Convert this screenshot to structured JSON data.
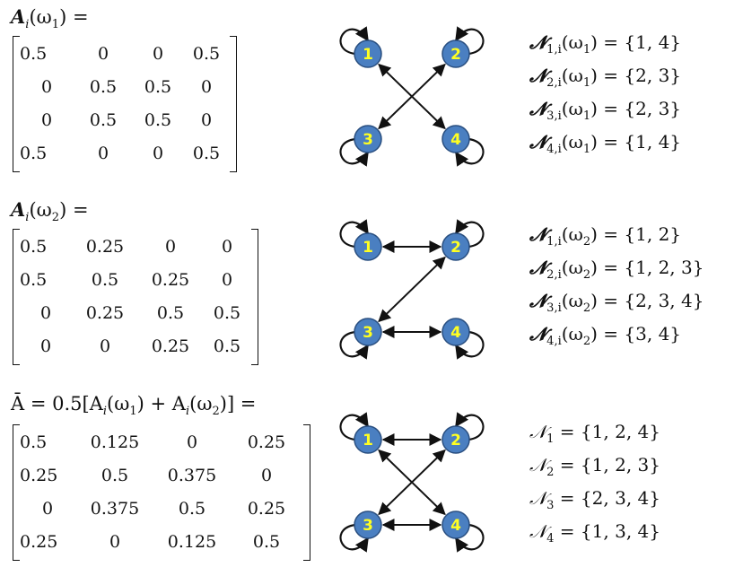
{
  "sections": [
    {
      "title_main": "A",
      "title_sub": "i",
      "title_rest": "(ω",
      "title_rest_sub": "1",
      "title_end": ") =",
      "matrix": [
        [
          "0.5",
          "0",
          "0",
          "0.5"
        ],
        [
          "0",
          "0.5",
          "0.5",
          "0"
        ],
        [
          "0",
          "0.5",
          "0.5",
          "0"
        ],
        [
          "0.5",
          "0",
          "0",
          "0.5"
        ]
      ],
      "neighborhoods": [
        {
          "sub": "1,i",
          "arg": "(ω",
          "argsub": "1",
          "set": ") = {1, 4}"
        },
        {
          "sub": "2,i",
          "arg": "(ω",
          "argsub": "1",
          "set": ") = {2, 3}"
        },
        {
          "sub": "3,i",
          "arg": "(ω",
          "argsub": "1",
          "set": ") = {2, 3}"
        },
        {
          "sub": "4,i",
          "arg": "(ω",
          "argsub": "1",
          "set": ") = {1, 4}"
        }
      ]
    },
    {
      "title_main": "A",
      "title_sub": "i",
      "title_rest": "(ω",
      "title_rest_sub": "2",
      "title_end": ") =",
      "matrix": [
        [
          "0.5",
          "0.25",
          "0",
          "0"
        ],
        [
          "0.5",
          "0.5",
          "0.25",
          "0"
        ],
        [
          "0",
          "0.25",
          "0.5",
          "0.5"
        ],
        [
          "0",
          "0",
          "0.25",
          "0.5"
        ]
      ],
      "neighborhoods": [
        {
          "sub": "1,i",
          "arg": "(ω",
          "argsub": "2",
          "set": ") = {1, 2}"
        },
        {
          "sub": "2,i",
          "arg": "(ω",
          "argsub": "2",
          "set": ") = {1, 2, 3}"
        },
        {
          "sub": "3,i",
          "arg": "(ω",
          "argsub": "2",
          "set": ") = {2, 3, 4}"
        },
        {
          "sub": "4,i",
          "arg": "(ω",
          "argsub": "2",
          "set": ") = {3, 4}"
        }
      ]
    },
    {
      "title_text": "Ā = 0.5[A",
      "title_text_sub": "i",
      "title_text_mid": "(ω",
      "title_text_mid_sub": "1",
      "title_text_plus": ") + A",
      "title_text_plus_sub": "i",
      "title_text_mid2": "(ω",
      "title_text_mid2_sub": "2",
      "title_text_end": ")] =",
      "matrix": [
        [
          "0.5",
          "0.125",
          "0",
          "0.25"
        ],
        [
          "0.25",
          "0.5",
          "0.375",
          "0"
        ],
        [
          "0",
          "0.375",
          "0.5",
          "0.25"
        ],
        [
          "0.25",
          "0",
          "0.125",
          "0.5"
        ]
      ],
      "neighborhoods": [
        {
          "sub": "1",
          "set": " = {1, 2, 4}"
        },
        {
          "sub": "2",
          "set": " = {1, 2, 3}"
        },
        {
          "sub": "3",
          "set": " = {2, 3, 4}"
        },
        {
          "sub": "4",
          "set": " = {1, 3, 4}"
        }
      ]
    }
  ],
  "node_labels": [
    "1",
    "2",
    "3",
    "4"
  ],
  "colors": {
    "node_fill": "#4a7fc1",
    "node_stroke": "#2a4f80",
    "node_label": "#ffff22",
    "edge": "#111111"
  }
}
